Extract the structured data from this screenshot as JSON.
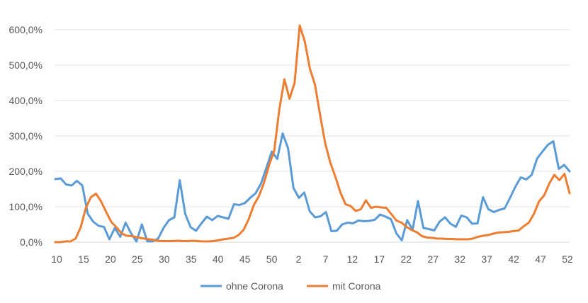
{
  "chart_data": {
    "type": "line",
    "x_tick_labels": [
      "10",
      "15",
      "20",
      "25",
      "30",
      "35",
      "40",
      "45",
      "50",
      "2",
      "7",
      "12",
      "17",
      "22",
      "27",
      "32",
      "37",
      "42",
      "47",
      "52"
    ],
    "y_tick_labels": [
      "0,0%",
      "100,0%",
      "200,0%",
      "300,0%",
      "400,0%",
      "500,0%",
      "600,0%"
    ],
    "ylim": [
      0,
      650
    ],
    "grid": true,
    "legend_position": "bottom",
    "series": [
      {
        "name": "ohne Corona",
        "color": "#5b9bd5",
        "values": [
          178,
          180,
          163,
          160,
          173,
          160,
          80,
          58,
          46,
          43,
          8,
          40,
          15,
          55,
          25,
          2,
          50,
          2,
          2,
          10,
          40,
          62,
          70,
          175,
          80,
          42,
          32,
          53,
          72,
          62,
          74,
          70,
          66,
          107,
          105,
          110,
          125,
          138,
          165,
          210,
          256,
          235,
          307,
          265,
          153,
          125,
          140,
          87,
          70,
          73,
          85,
          31,
          32,
          50,
          55,
          53,
          61,
          59,
          60,
          63,
          78,
          72,
          65,
          25,
          5,
          62,
          35,
          116,
          40,
          37,
          33,
          58,
          70,
          52,
          43,
          75,
          70,
          52,
          53,
          127,
          93,
          85,
          91,
          95,
          125,
          157,
          183,
          177,
          190,
          236,
          256,
          275,
          285,
          207,
          218,
          200
        ],
        "x_index_note": ""
      },
      {
        "name": "mit Corona",
        "color": "#ed7d31",
        "values": [
          0,
          0,
          2,
          2,
          10,
          42,
          96,
          127,
          137,
          115,
          85,
          57,
          42,
          25,
          18,
          17,
          14,
          11,
          9,
          7,
          4,
          3,
          3,
          3,
          4,
          3,
          3,
          4,
          3,
          2,
          2,
          3,
          5,
          8,
          10,
          12,
          20,
          35,
          65,
          105,
          130,
          168,
          218,
          258,
          375,
          460,
          405,
          450,
          612,
          567,
          490,
          445,
          360,
          280,
          225,
          185,
          140,
          107,
          102,
          88,
          93,
          118,
          97,
          100,
          98,
          97,
          79,
          61,
          55,
          43,
          34,
          28,
          17,
          13,
          12,
          10,
          10,
          9,
          9,
          8,
          8,
          8,
          10,
          15,
          18,
          20,
          24,
          27,
          28,
          29,
          31,
          33,
          45,
          55,
          80,
          115,
          132,
          165,
          190,
          175,
          193,
          138
        ]
      }
    ]
  },
  "legend": {
    "items": [
      {
        "label": "ohne Corona",
        "color": "#5b9bd5"
      },
      {
        "label": "mit Corona",
        "color": "#ed7d31"
      }
    ]
  }
}
